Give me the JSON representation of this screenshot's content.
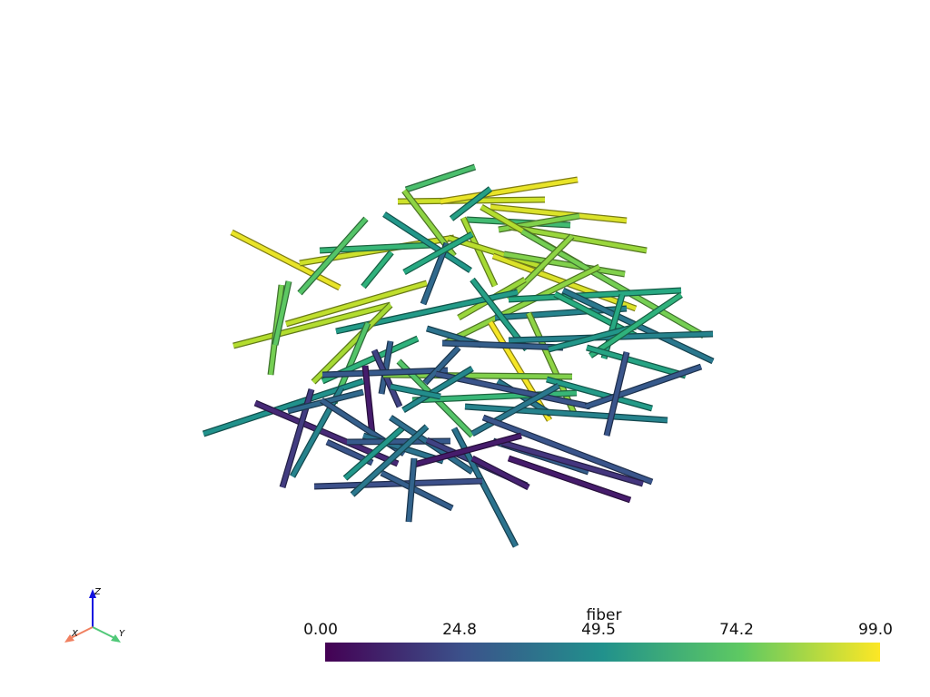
{
  "scene": {
    "colormap": "viridis",
    "value_range": [
      0,
      99
    ]
  },
  "colorbar": {
    "title": "fiber",
    "ticks": [
      "0.00",
      "24.8",
      "49.5",
      "74.2",
      "99.0"
    ],
    "colors": [
      "#440154",
      "#3b528b",
      "#21918c",
      "#5ec962",
      "#fde725"
    ]
  },
  "axes": {
    "x_label": "X",
    "y_label": "Y",
    "z_label": "Z",
    "x_color": "#f08060",
    "y_color": "#50c878",
    "z_color": "#1010e0"
  }
}
